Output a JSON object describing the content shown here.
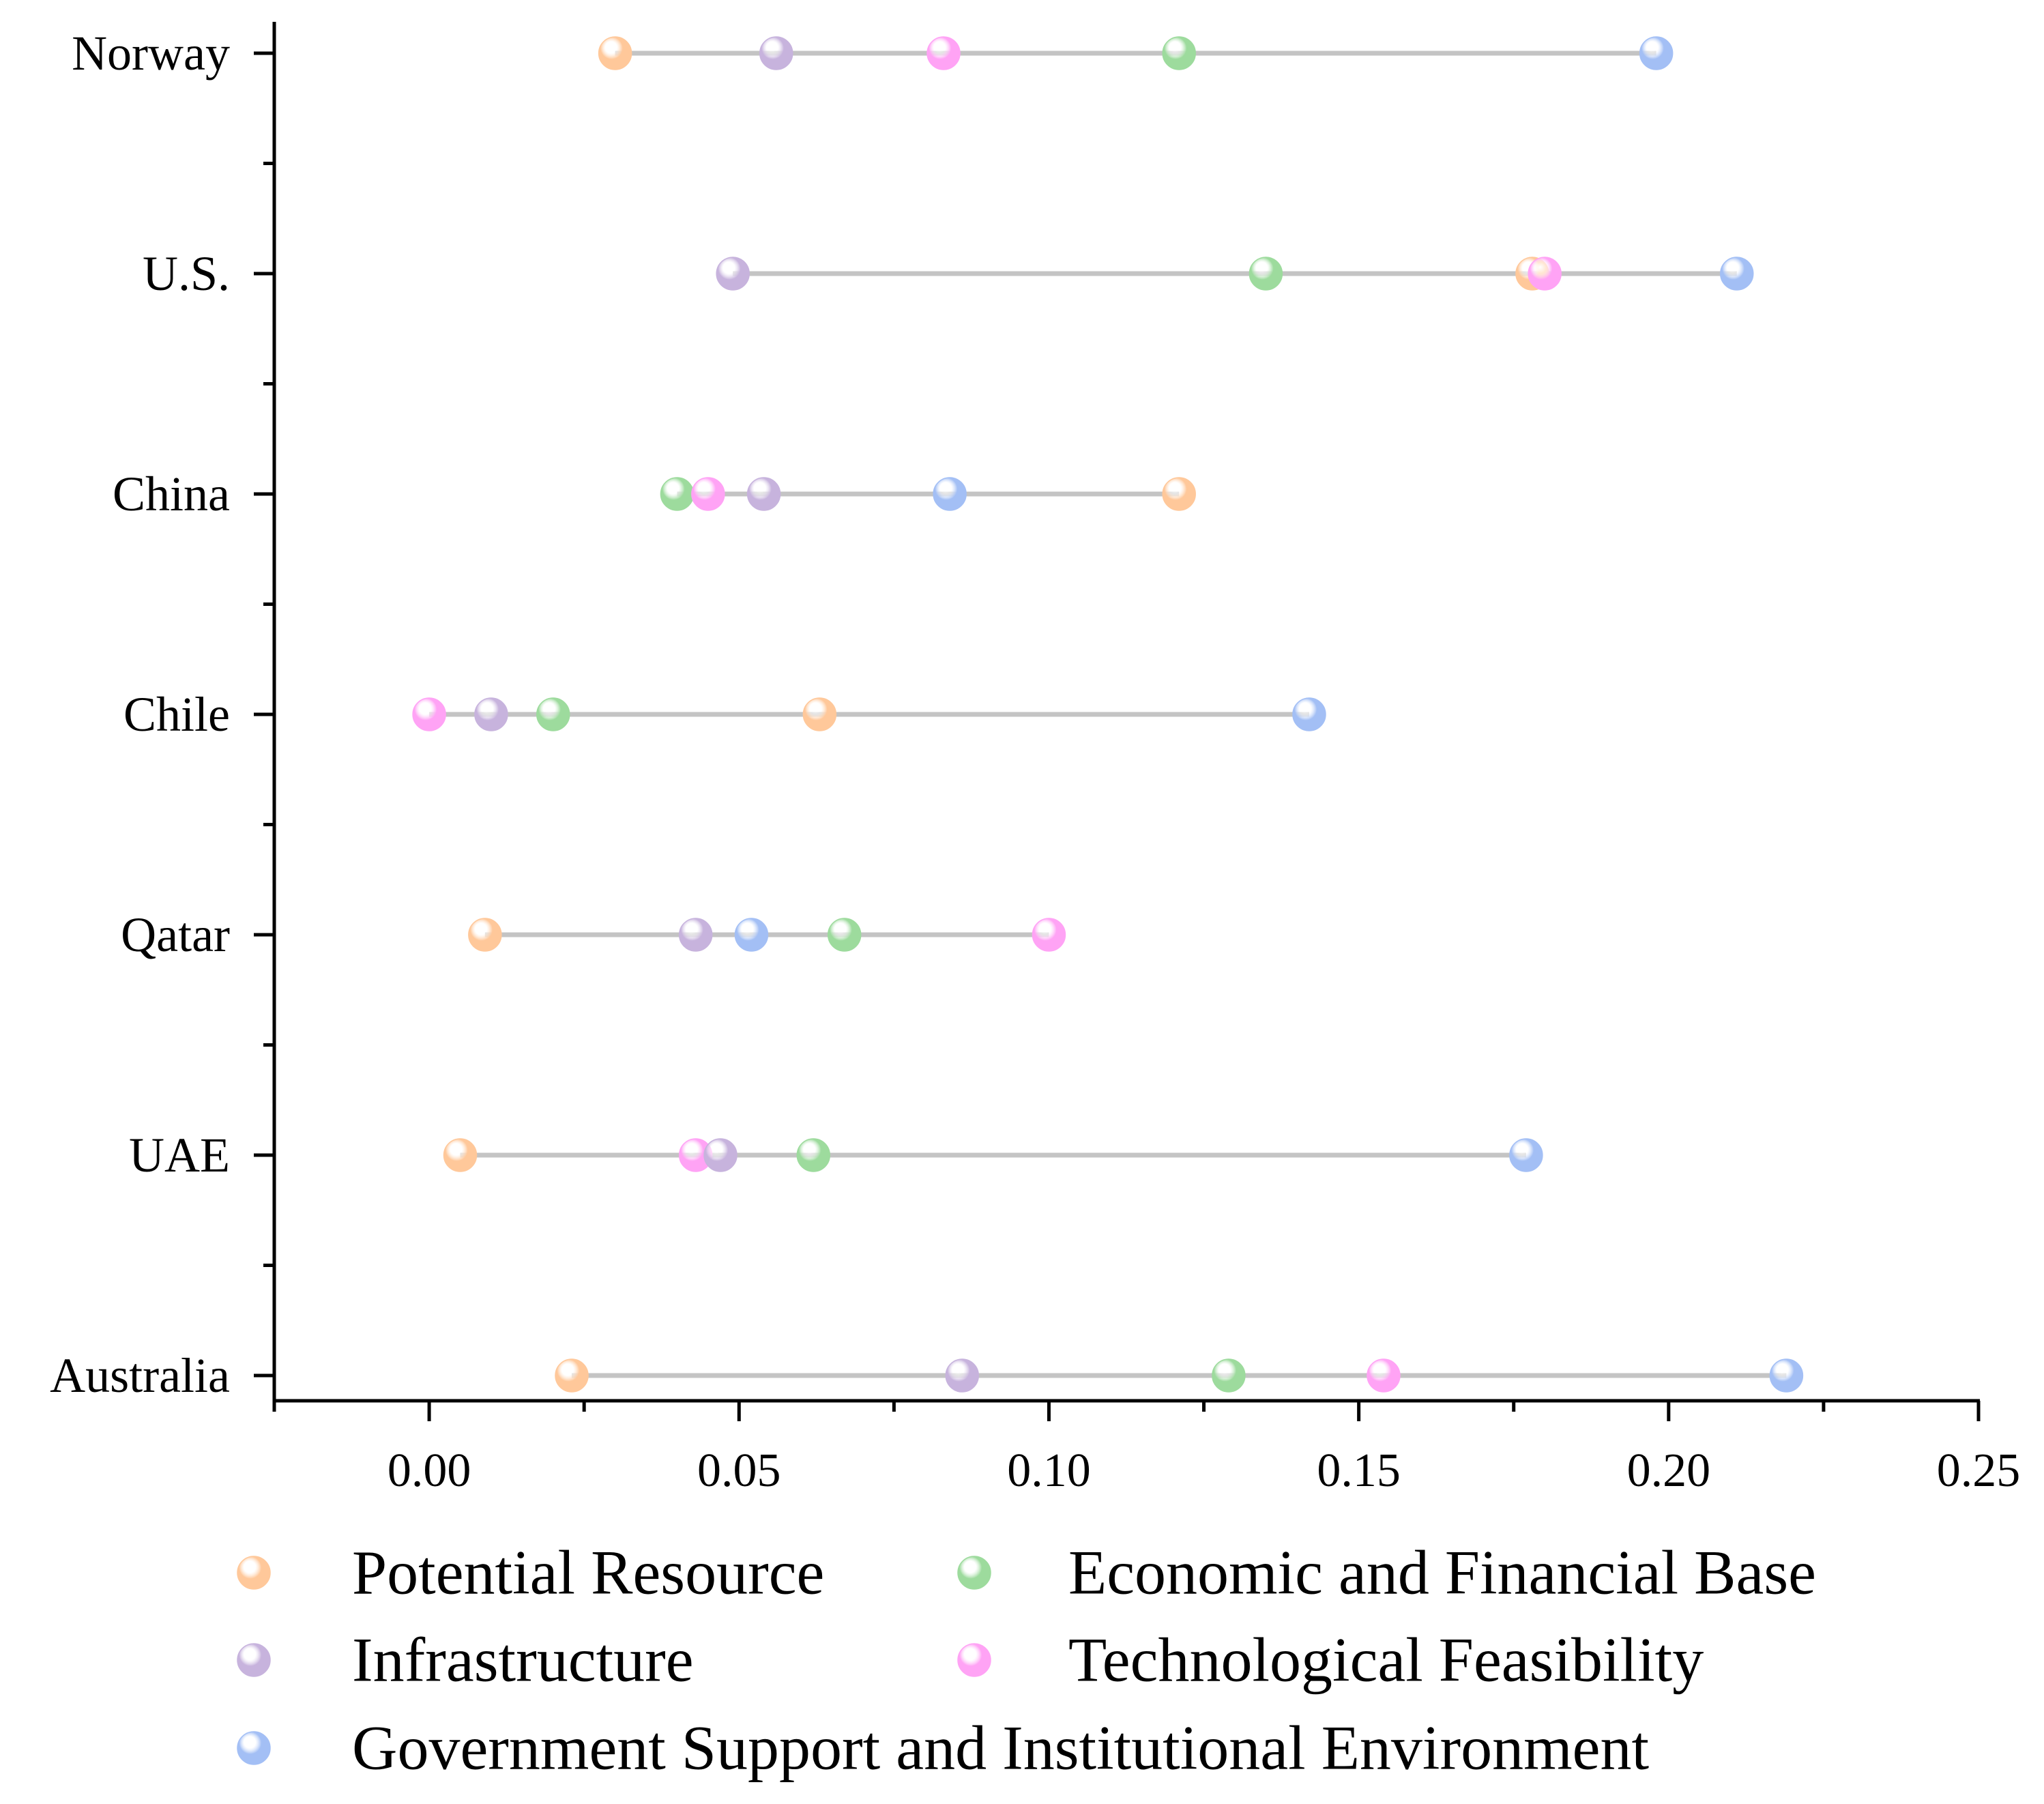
{
  "chart_data": {
    "type": "dumbbell",
    "title": "",
    "xlabel": "",
    "ylabel": "",
    "xlim": [
      -0.025,
      0.25
    ],
    "x_ticks": [
      0.0,
      0.05,
      0.1,
      0.15,
      0.2,
      0.25
    ],
    "x_tick_labels": [
      "0.00",
      "0.05",
      "0.10",
      "0.15",
      "0.20",
      "0.25"
    ],
    "grid": false,
    "legend_position": "bottom",
    "categories": [
      "Norway",
      "U.S.",
      "China",
      "Chile",
      "Qatar",
      "UAE",
      "Australia"
    ],
    "series": [
      {
        "name": "Potential Resource",
        "color": "#FFC89A",
        "values": [
          0.03,
          0.178,
          0.121,
          0.063,
          0.009,
          0.005,
          0.023
        ]
      },
      {
        "name": "Economic and Financial Base",
        "color": "#9DDB9D",
        "values": [
          0.121,
          0.135,
          0.04,
          0.02,
          0.067,
          0.062,
          0.129
        ]
      },
      {
        "name": "Infrastructure",
        "color": "#C7B3DD",
        "values": [
          0.056,
          0.049,
          0.054,
          0.01,
          0.043,
          0.047,
          0.086
        ]
      },
      {
        "name": "Technological Feasibility",
        "color": "#FFA3F5",
        "values": [
          0.083,
          0.18,
          0.045,
          0.0,
          0.1,
          0.043,
          0.154
        ]
      },
      {
        "name": "Government Support and Institutional Environment",
        "color": "#A3BFF5",
        "values": [
          0.198,
          0.211,
          0.084,
          0.142,
          0.052,
          0.177,
          0.219
        ]
      }
    ]
  }
}
